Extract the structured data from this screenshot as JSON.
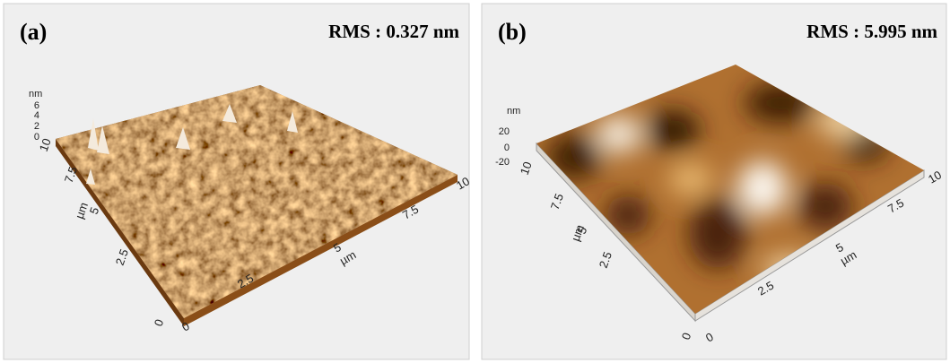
{
  "panels": [
    {
      "label": "(a)",
      "rms": "RMS : 0.327 nm",
      "z_unit": "nm",
      "z_ticks": [
        "6",
        "4",
        "2",
        "0"
      ],
      "y_ticks": [
        "10",
        "7.5",
        "5",
        "2.5",
        "0"
      ],
      "y_unit": "µm",
      "x_ticks": [
        "0",
        "2.5",
        "5",
        "7.5",
        "10"
      ],
      "x_unit": "µm"
    },
    {
      "label": "(b)",
      "rms": "RMS : 5.995 nm",
      "z_unit": "nm",
      "z_ticks": [
        "20",
        "0",
        "-20"
      ],
      "y_ticks": [
        "10",
        "7.5",
        "5",
        "2.5",
        "0"
      ],
      "y_unit": "µm",
      "x_ticks": [
        "0",
        "2.5",
        "5",
        "7.5",
        "10"
      ],
      "x_unit": "µm"
    }
  ]
}
